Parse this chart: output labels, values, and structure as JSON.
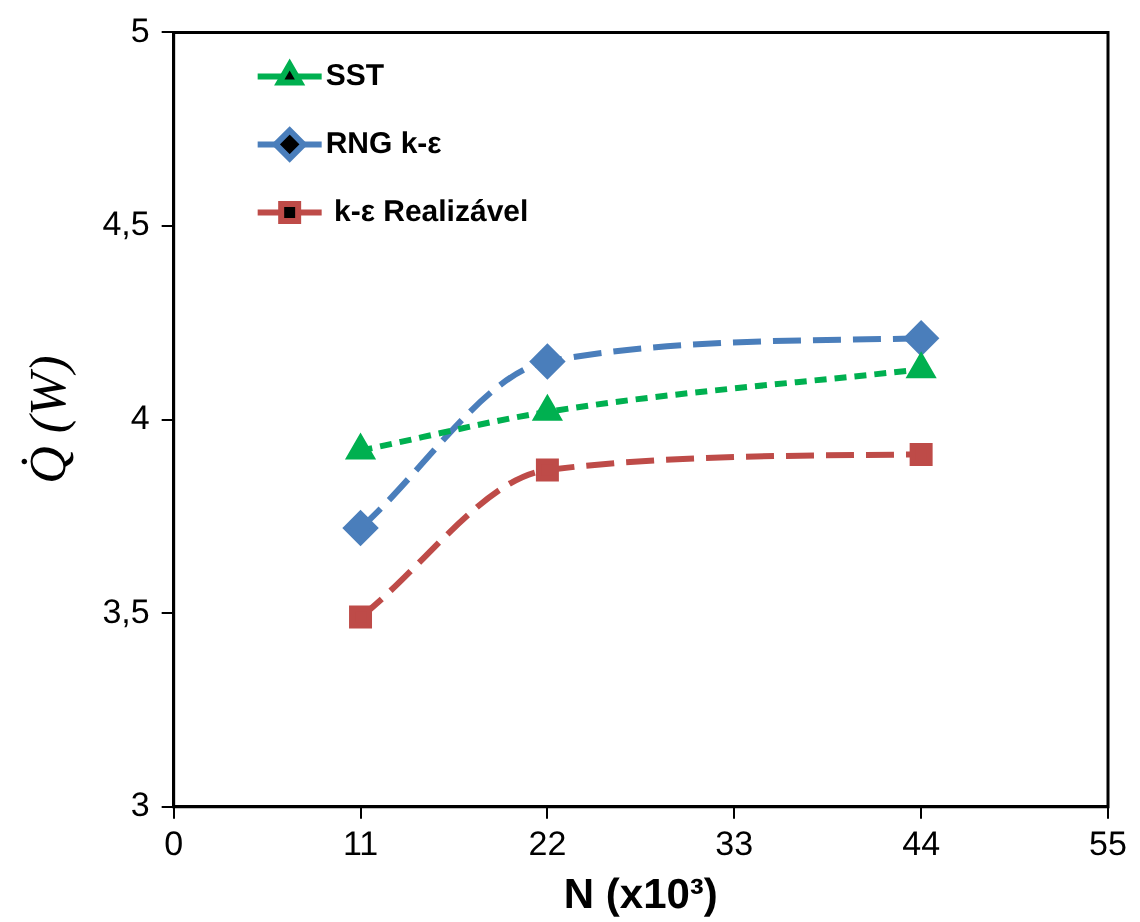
{
  "chart_data": {
    "type": "line",
    "xlabel": "N (x10³)",
    "ylabel": "Q̇ (W)",
    "x": [
      11,
      22,
      44
    ],
    "series": [
      {
        "name": "SST",
        "color": "#00b050",
        "values": [
          3.92,
          4.02,
          4.13
        ],
        "marker": "triangle",
        "line_style": "dotted"
      },
      {
        "name": "RNG k-ε",
        "color": "#4a7ebb",
        "values": [
          3.72,
          4.15,
          4.21
        ],
        "marker": "diamond",
        "line_style": "dashed"
      },
      {
        "name": " k-ε Realizável",
        "color": "#be4b48",
        "values": [
          3.49,
          3.87,
          3.91
        ],
        "marker": "square",
        "line_style": "dashed"
      }
    ],
    "xlim": [
      0,
      55
    ],
    "xticks": [
      0,
      11,
      22,
      33,
      44,
      55
    ],
    "ylim": [
      3,
      5
    ],
    "yticks": [
      3,
      {
        "value": 3.5,
        "label": "3,5"
      },
      4,
      {
        "value": 4.5,
        "label": "4,5"
      },
      5
    ],
    "grid": false,
    "legend": "top left"
  }
}
